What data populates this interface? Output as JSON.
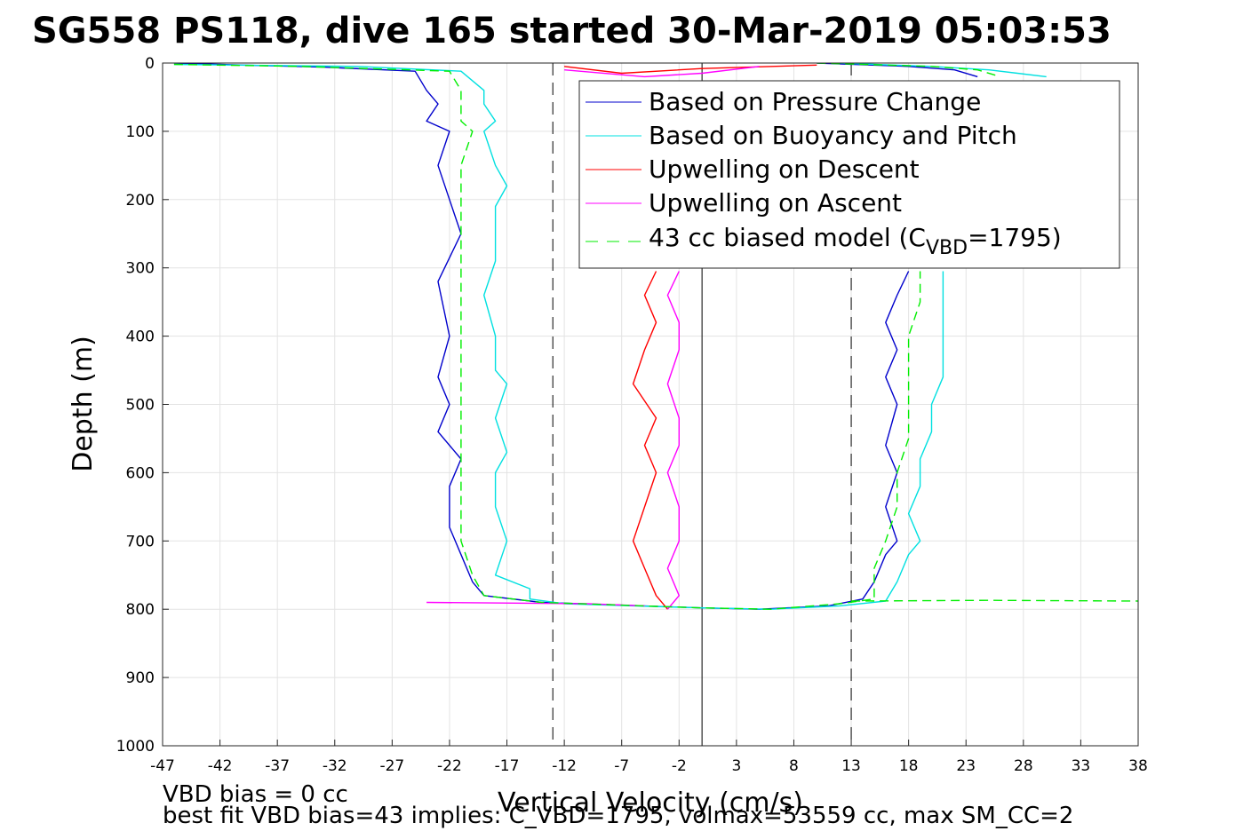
{
  "chart_data": {
    "type": "line",
    "title": "SG558 PS118, dive 165 started 30-Mar-2019 05:03:53",
    "xlabel": "Vertical Velocity (cm/s)",
    "ylabel": "Depth (m)",
    "xlim": [
      -47,
      38
    ],
    "ylim": [
      0,
      1000
    ],
    "y_reversed": true,
    "grid": true,
    "legend_position": "top-right",
    "xticks": [
      "-47",
      "-42",
      "-37",
      "-32",
      "-27",
      "-22",
      "-17",
      "-12",
      "-7",
      "-2",
      "3",
      "8",
      "13",
      "18",
      "23",
      "28",
      "33",
      "38"
    ],
    "yticks": [
      "0",
      "100",
      "200",
      "300",
      "400",
      "500",
      "600",
      "700",
      "800",
      "900",
      "1000"
    ],
    "reference_lines": [
      {
        "x": -13,
        "style": "dashed",
        "color": "#000000"
      },
      {
        "x": 0,
        "style": "solid",
        "color": "#000000"
      },
      {
        "x": 13,
        "style": "dashed",
        "color": "#000000"
      }
    ],
    "series": [
      {
        "name": "Based on Pressure Change",
        "color": "#0000cc",
        "style": "solid",
        "segments": [
          [
            [
              -46,
              0
            ],
            [
              -40,
              3
            ],
            [
              -33,
              6
            ],
            [
              -25,
              12
            ],
            [
              -24,
              40
            ],
            [
              -23,
              60
            ],
            [
              -24,
              85
            ],
            [
              -22,
              100
            ],
            [
              -23,
              150
            ],
            [
              -22,
              200
            ],
            [
              -21,
              250
            ],
            [
              -23,
              320
            ],
            [
              -22,
              400
            ],
            [
              -23,
              460
            ],
            [
              -22,
              500
            ],
            [
              -23,
              540
            ],
            [
              -21,
              580
            ],
            [
              -22,
              620
            ],
            [
              -22,
              680
            ],
            [
              -21,
              720
            ],
            [
              -20,
              760
            ],
            [
              -19,
              780
            ],
            [
              -14,
              790
            ],
            [
              0,
              798
            ],
            [
              5,
              800
            ],
            [
              11,
              795
            ],
            [
              14,
              785
            ],
            [
              15,
              760
            ],
            [
              16,
              720
            ],
            [
              17,
              700
            ],
            [
              16,
              650
            ],
            [
              17,
              600
            ],
            [
              16,
              560
            ],
            [
              17,
              500
            ],
            [
              16,
              460
            ],
            [
              17,
              420
            ],
            [
              16,
              380
            ],
            [
              17,
              340
            ],
            [
              18,
              305
            ]
          ],
          [
            [
              10,
              0
            ],
            [
              18,
              5
            ],
            [
              22,
              10
            ],
            [
              24,
              20
            ]
          ]
        ]
      },
      {
        "name": "Based on Buoyancy and Pitch",
        "color": "#00e0e0",
        "style": "solid",
        "segments": [
          [
            [
              -46,
              2
            ],
            [
              -30,
              5
            ],
            [
              -21,
              12
            ],
            [
              -19,
              40
            ],
            [
              -19,
              60
            ],
            [
              -18,
              85
            ],
            [
              -19,
              100
            ],
            [
              -18,
              150
            ],
            [
              -17,
              180
            ],
            [
              -18,
              210
            ],
            [
              -18,
              260
            ],
            [
              -18,
              290
            ],
            [
              -19,
              340
            ],
            [
              -18,
              400
            ],
            [
              -18,
              450
            ],
            [
              -17,
              470
            ],
            [
              -18,
              520
            ],
            [
              -17,
              570
            ],
            [
              -18,
              600
            ],
            [
              -18,
              650
            ],
            [
              -17,
              700
            ],
            [
              -18,
              750
            ],
            [
              -15,
              770
            ],
            [
              -15,
              785
            ],
            [
              -12,
              792
            ],
            [
              0,
              798
            ],
            [
              6,
              800
            ],
            [
              12,
              795
            ],
            [
              16,
              788
            ],
            [
              17,
              760
            ],
            [
              18,
              720
            ],
            [
              19,
              700
            ],
            [
              18,
              660
            ],
            [
              19,
              620
            ],
            [
              19,
              580
            ],
            [
              20,
              540
            ],
            [
              20,
              500
            ],
            [
              21,
              460
            ],
            [
              21,
              420
            ],
            [
              21,
              380
            ],
            [
              21,
              340
            ],
            [
              21,
              305
            ]
          ],
          [
            [
              12,
              0
            ],
            [
              20,
              5
            ],
            [
              25,
              10
            ],
            [
              30,
              20
            ]
          ]
        ]
      },
      {
        "name": "Upwelling on Descent",
        "color": "#ff0000",
        "style": "solid",
        "segments": [
          [
            [
              -4,
              305
            ],
            [
              -5,
              340
            ],
            [
              -4,
              380
            ],
            [
              -5,
              420
            ],
            [
              -6,
              470
            ],
            [
              -4,
              520
            ],
            [
              -5,
              560
            ],
            [
              -4,
              600
            ],
            [
              -5,
              650
            ],
            [
              -6,
              700
            ],
            [
              -5,
              740
            ],
            [
              -4,
              780
            ],
            [
              -3,
              800
            ]
          ],
          [
            [
              -12,
              5
            ],
            [
              -7,
              15
            ],
            [
              0,
              8
            ],
            [
              10,
              3
            ]
          ]
        ]
      },
      {
        "name": "Upwelling on Ascent",
        "color": "#ff00ff",
        "style": "solid",
        "segments": [
          [
            [
              -2,
              305
            ],
            [
              -3,
              340
            ],
            [
              -2,
              380
            ],
            [
              -2,
              420
            ],
            [
              -3,
              470
            ],
            [
              -2,
              520
            ],
            [
              -2,
              560
            ],
            [
              -3,
              600
            ],
            [
              -2,
              650
            ],
            [
              -2,
              700
            ],
            [
              -3,
              740
            ],
            [
              -2,
              780
            ],
            [
              -3,
              800
            ]
          ],
          [
            [
              -12,
              10
            ],
            [
              -5,
              20
            ],
            [
              0,
              15
            ],
            [
              5,
              5
            ]
          ],
          [
            [
              -24,
              790
            ],
            [
              -10,
              792
            ],
            [
              -5,
              795
            ]
          ]
        ]
      },
      {
        "name": "43 cc biased model (C_VBD=1795)",
        "color": "#00ee00",
        "style": "dashed",
        "segments": [
          [
            [
              -46,
              2
            ],
            [
              -35,
              5
            ],
            [
              -22,
              12
            ],
            [
              -21,
              40
            ],
            [
              -21,
              85
            ],
            [
              -20,
              100
            ],
            [
              -21,
              150
            ],
            [
              -21,
              200
            ],
            [
              -21,
              250
            ],
            [
              -21,
              300
            ],
            [
              -21,
              350
            ],
            [
              -21,
              400
            ],
            [
              -21,
              450
            ],
            [
              -21,
              500
            ],
            [
              -21,
              550
            ],
            [
              -21,
              600
            ],
            [
              -21,
              650
            ],
            [
              -21,
              700
            ],
            [
              -20,
              750
            ],
            [
              -19,
              780
            ],
            [
              -14,
              790
            ],
            [
              0,
              798
            ],
            [
              6,
              800
            ],
            [
              12,
              792
            ],
            [
              15,
              785
            ],
            [
              15,
              740
            ],
            [
              16,
              700
            ],
            [
              17,
              650
            ],
            [
              17,
              600
            ],
            [
              18,
              550
            ],
            [
              18,
              500
            ],
            [
              18,
              450
            ],
            [
              18,
              400
            ],
            [
              19,
              350
            ],
            [
              19,
              305
            ]
          ],
          [
            [
              10,
              0
            ],
            [
              20,
              5
            ],
            [
              24,
              10
            ],
            [
              26,
              20
            ]
          ],
          [
            [
              13,
              788
            ],
            [
              25,
              787
            ],
            [
              38,
              788
            ]
          ]
        ]
      }
    ],
    "legend": {
      "entries": [
        {
          "label": "Based on Pressure Change",
          "color": "#0000cc",
          "style": "solid"
        },
        {
          "label": "Based on Buoyancy and Pitch",
          "color": "#00e0e0",
          "style": "solid"
        },
        {
          "label": "Upwelling on Descent",
          "color": "#ff0000",
          "style": "solid"
        },
        {
          "label": "Upwelling on Ascent",
          "color": "#ff00ff",
          "style": "solid"
        },
        {
          "label_prefix": "43 cc biased model (C",
          "label_sub": "VBD",
          "label_suffix": "=1795)",
          "color": "#00ee00",
          "style": "dashed"
        }
      ]
    },
    "annotations": [
      "VBD bias = 0 cc",
      "best fit VBD bias=43 implies: C_VBD=1795, volmax=53559 cc, max SM_CC=2"
    ]
  }
}
